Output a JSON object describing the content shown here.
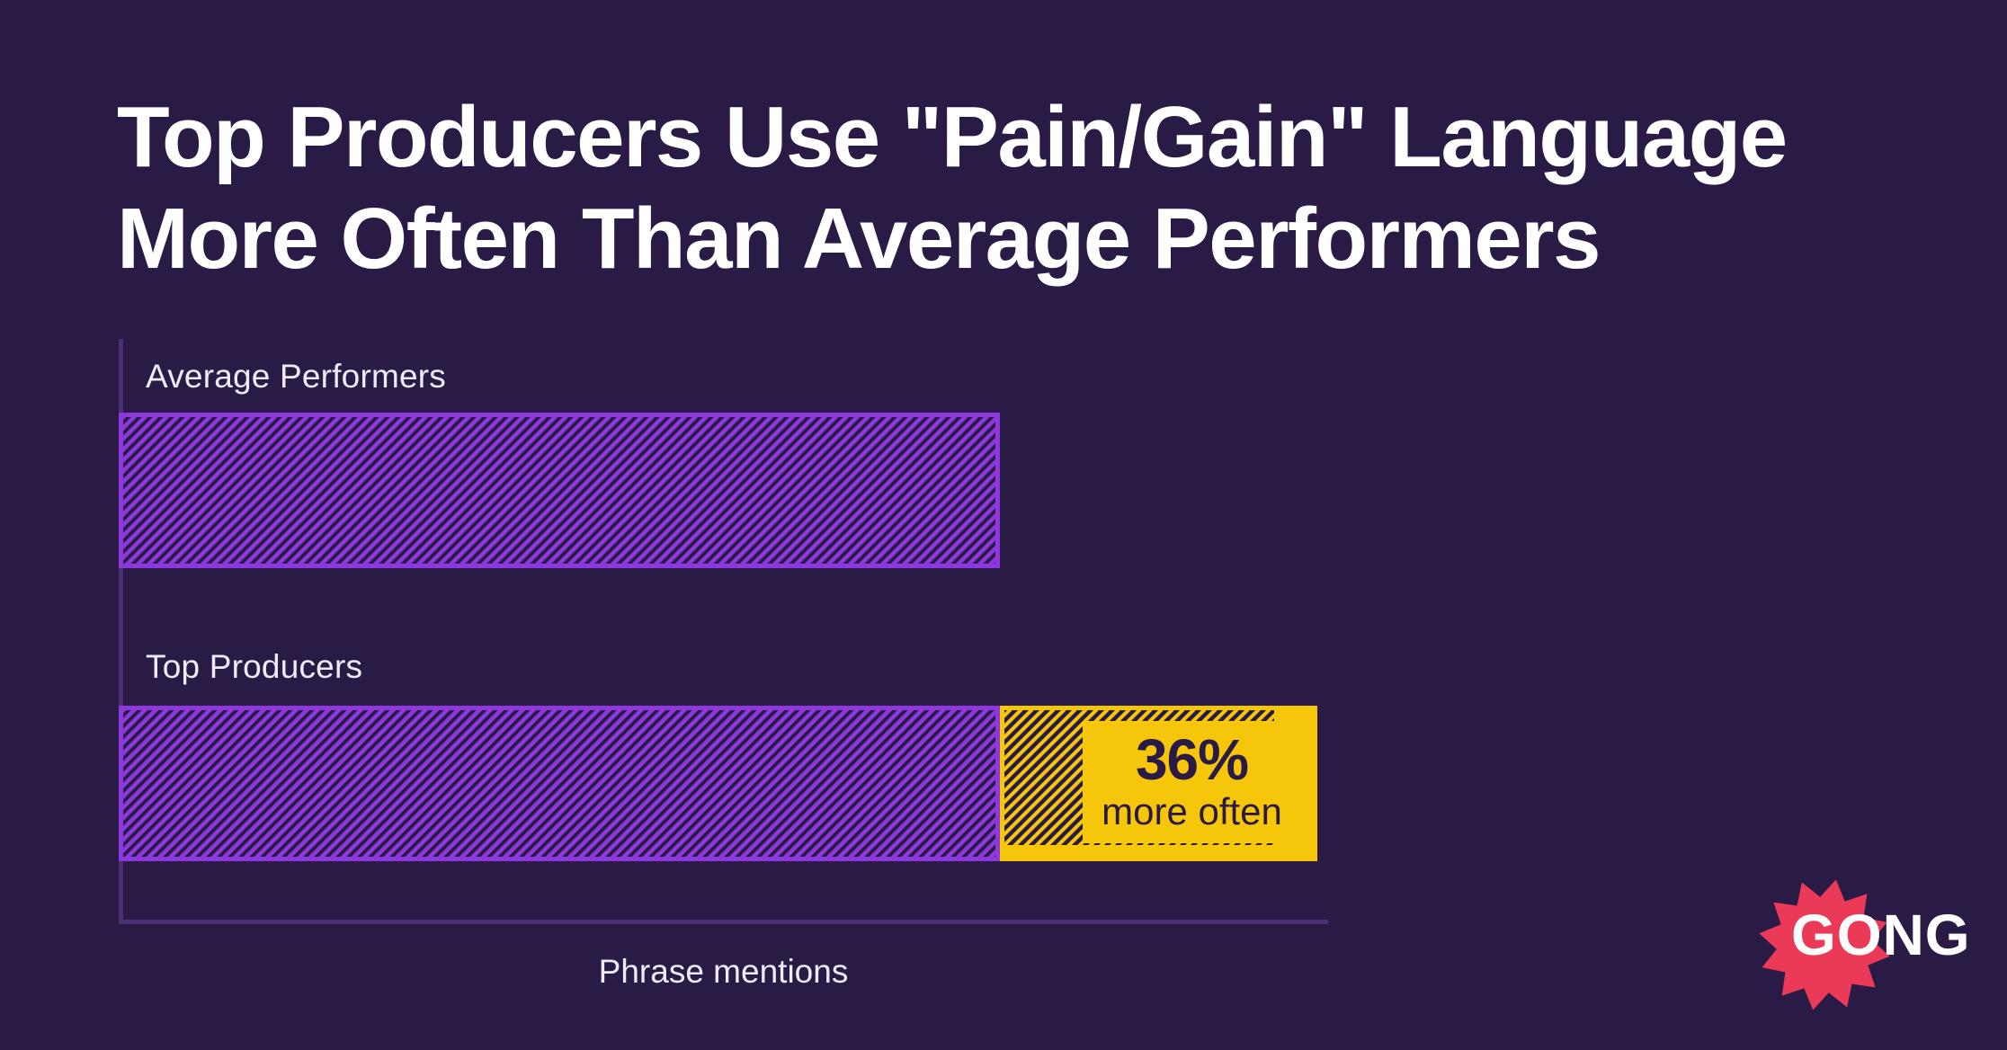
{
  "title": {
    "line1": "Top Producers Use \"Pain/Gain\" Language",
    "line2": "More Often Than Average Performers"
  },
  "chart_data": {
    "type": "bar",
    "orientation": "horizontal",
    "categories": [
      "Average Performers",
      "Top Producers"
    ],
    "series": [
      {
        "name": "Phrase mentions",
        "values": [
          100,
          136
        ]
      }
    ],
    "value_basis": "relative, Average Performers = 100",
    "xlabel": "Phrase mentions",
    "annotation": {
      "value": "36%",
      "label": "more often",
      "applies_to": "Top Producers"
    },
    "legend": false,
    "gridlines": false,
    "bar_style": "diagonal-hatch"
  },
  "logo": {
    "text": "GONG"
  },
  "colors": {
    "background": "#2A1A46",
    "bar_purple": "#8C38DC",
    "axis_purple": "#4C3076",
    "highlight_yellow": "#F5C60A",
    "dark_text": "#2A1A46",
    "logo_red": "#EA3A57",
    "text_white": "#FFFFFF"
  }
}
